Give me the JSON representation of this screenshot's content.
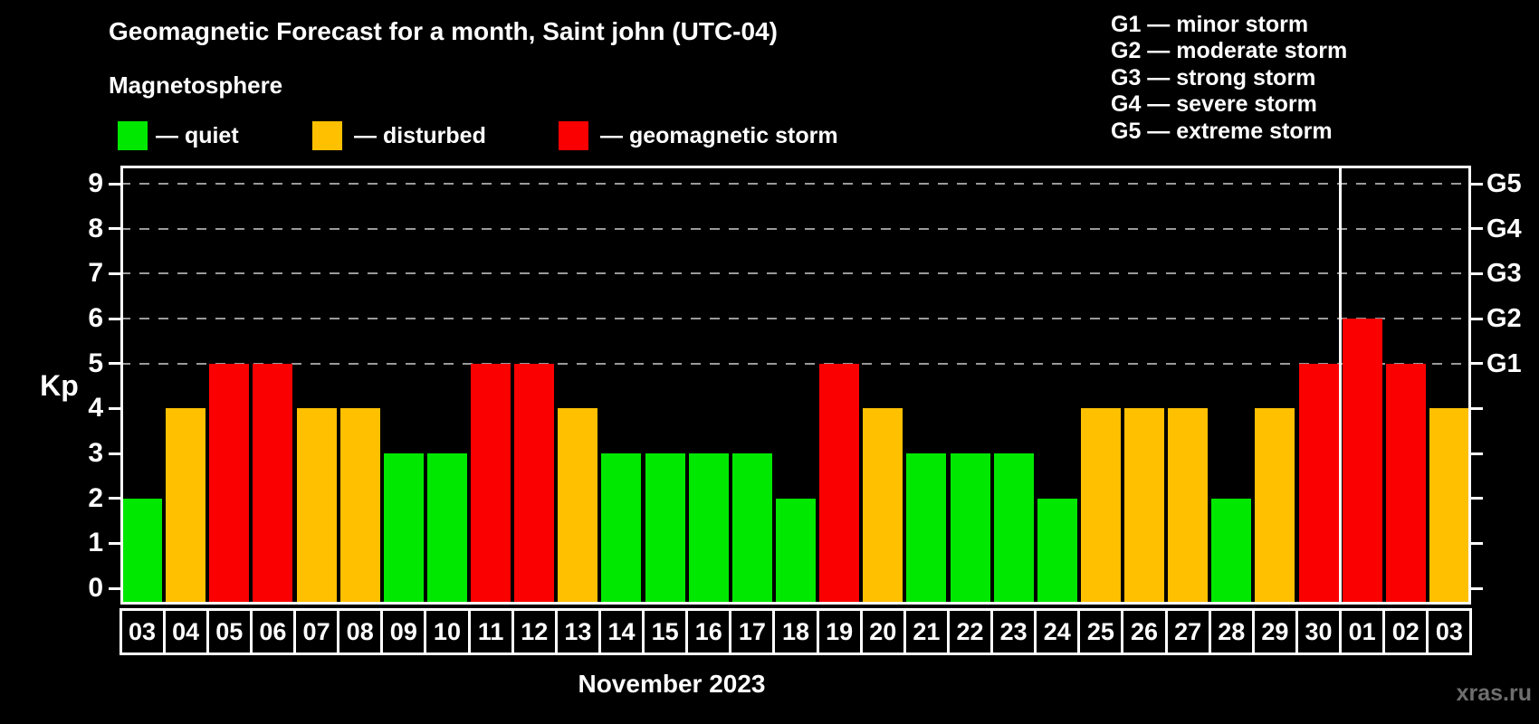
{
  "title": "Geomagnetic Forecast for a month, Saint john (UTC-04)",
  "subtitle": "Magnetosphere",
  "legend": {
    "items": [
      {
        "key": "quiet",
        "label": "— quiet"
      },
      {
        "key": "disturbed",
        "label": "— disturbed"
      },
      {
        "key": "storm",
        "label": "— geomagnetic storm"
      }
    ]
  },
  "g_legend": {
    "items": [
      "G1 — minor storm",
      "G2 — moderate storm",
      "G3 — strong storm",
      "G4 — severe storm",
      "G5 — extreme storm"
    ]
  },
  "watermark": "xras.ru",
  "colors": {
    "quiet": "#00e800",
    "disturbed": "#ffc000",
    "storm": "#fb0000",
    "grid": "#9a9a9a",
    "frame": "#ffffff",
    "text": "#ffffff",
    "watermark": "#6e6e6e",
    "background": "#000000"
  },
  "chart_data": {
    "type": "bar",
    "title": "Geomagnetic Forecast for a month, Saint john (UTC-04)",
    "ylabel": "Kp",
    "xlabel": "November 2023",
    "ylim": [
      0,
      9
    ],
    "y_ticks": [
      0,
      1,
      2,
      3,
      4,
      5,
      6,
      7,
      8,
      9
    ],
    "grid_kp": [
      5,
      6,
      7,
      8,
      9
    ],
    "grid_style": "dashed horizontal lines at Kp 5-9 only",
    "g_labels": [
      {
        "kp": 5,
        "label": "G1"
      },
      {
        "kp": 6,
        "label": "G2"
      },
      {
        "kp": 7,
        "label": "G3"
      },
      {
        "kp": 8,
        "label": "G4"
      },
      {
        "kp": 9,
        "label": "G5"
      }
    ],
    "divider_after_index": 27,
    "categories": [
      "03",
      "04",
      "05",
      "06",
      "07",
      "08",
      "09",
      "10",
      "11",
      "12",
      "13",
      "14",
      "15",
      "16",
      "17",
      "18",
      "19",
      "20",
      "21",
      "22",
      "23",
      "24",
      "25",
      "26",
      "27",
      "28",
      "29",
      "30",
      "01",
      "02",
      "03"
    ],
    "values": [
      2,
      4,
      5,
      5,
      4,
      4,
      3,
      3,
      5,
      5,
      4,
      3,
      3,
      3,
      3,
      2,
      5,
      4,
      3,
      3,
      3,
      2,
      4,
      4,
      4,
      2,
      4,
      5,
      6,
      5,
      4
    ],
    "days": [
      {
        "day": "03",
        "kp": 2,
        "status": "quiet"
      },
      {
        "day": "04",
        "kp": 4,
        "status": "disturbed"
      },
      {
        "day": "05",
        "kp": 5,
        "status": "storm"
      },
      {
        "day": "06",
        "kp": 5,
        "status": "storm"
      },
      {
        "day": "07",
        "kp": 4,
        "status": "disturbed"
      },
      {
        "day": "08",
        "kp": 4,
        "status": "disturbed"
      },
      {
        "day": "09",
        "kp": 3,
        "status": "quiet"
      },
      {
        "day": "10",
        "kp": 3,
        "status": "quiet"
      },
      {
        "day": "11",
        "kp": 5,
        "status": "storm"
      },
      {
        "day": "12",
        "kp": 5,
        "status": "storm"
      },
      {
        "day": "13",
        "kp": 4,
        "status": "disturbed"
      },
      {
        "day": "14",
        "kp": 3,
        "status": "quiet"
      },
      {
        "day": "15",
        "kp": 3,
        "status": "quiet"
      },
      {
        "day": "16",
        "kp": 3,
        "status": "quiet"
      },
      {
        "day": "17",
        "kp": 3,
        "status": "quiet"
      },
      {
        "day": "18",
        "kp": 2,
        "status": "quiet"
      },
      {
        "day": "19",
        "kp": 5,
        "status": "storm"
      },
      {
        "day": "20",
        "kp": 4,
        "status": "disturbed"
      },
      {
        "day": "21",
        "kp": 3,
        "status": "quiet"
      },
      {
        "day": "22",
        "kp": 3,
        "status": "quiet"
      },
      {
        "day": "23",
        "kp": 3,
        "status": "quiet"
      },
      {
        "day": "24",
        "kp": 2,
        "status": "quiet"
      },
      {
        "day": "25",
        "kp": 4,
        "status": "disturbed"
      },
      {
        "day": "26",
        "kp": 4,
        "status": "disturbed"
      },
      {
        "day": "27",
        "kp": 4,
        "status": "disturbed"
      },
      {
        "day": "28",
        "kp": 2,
        "status": "quiet"
      },
      {
        "day": "29",
        "kp": 4,
        "status": "disturbed"
      },
      {
        "day": "30",
        "kp": 5,
        "status": "storm"
      },
      {
        "day": "01",
        "kp": 6,
        "status": "storm"
      },
      {
        "day": "02",
        "kp": 5,
        "status": "storm"
      },
      {
        "day": "03",
        "kp": 4,
        "status": "disturbed"
      }
    ]
  }
}
